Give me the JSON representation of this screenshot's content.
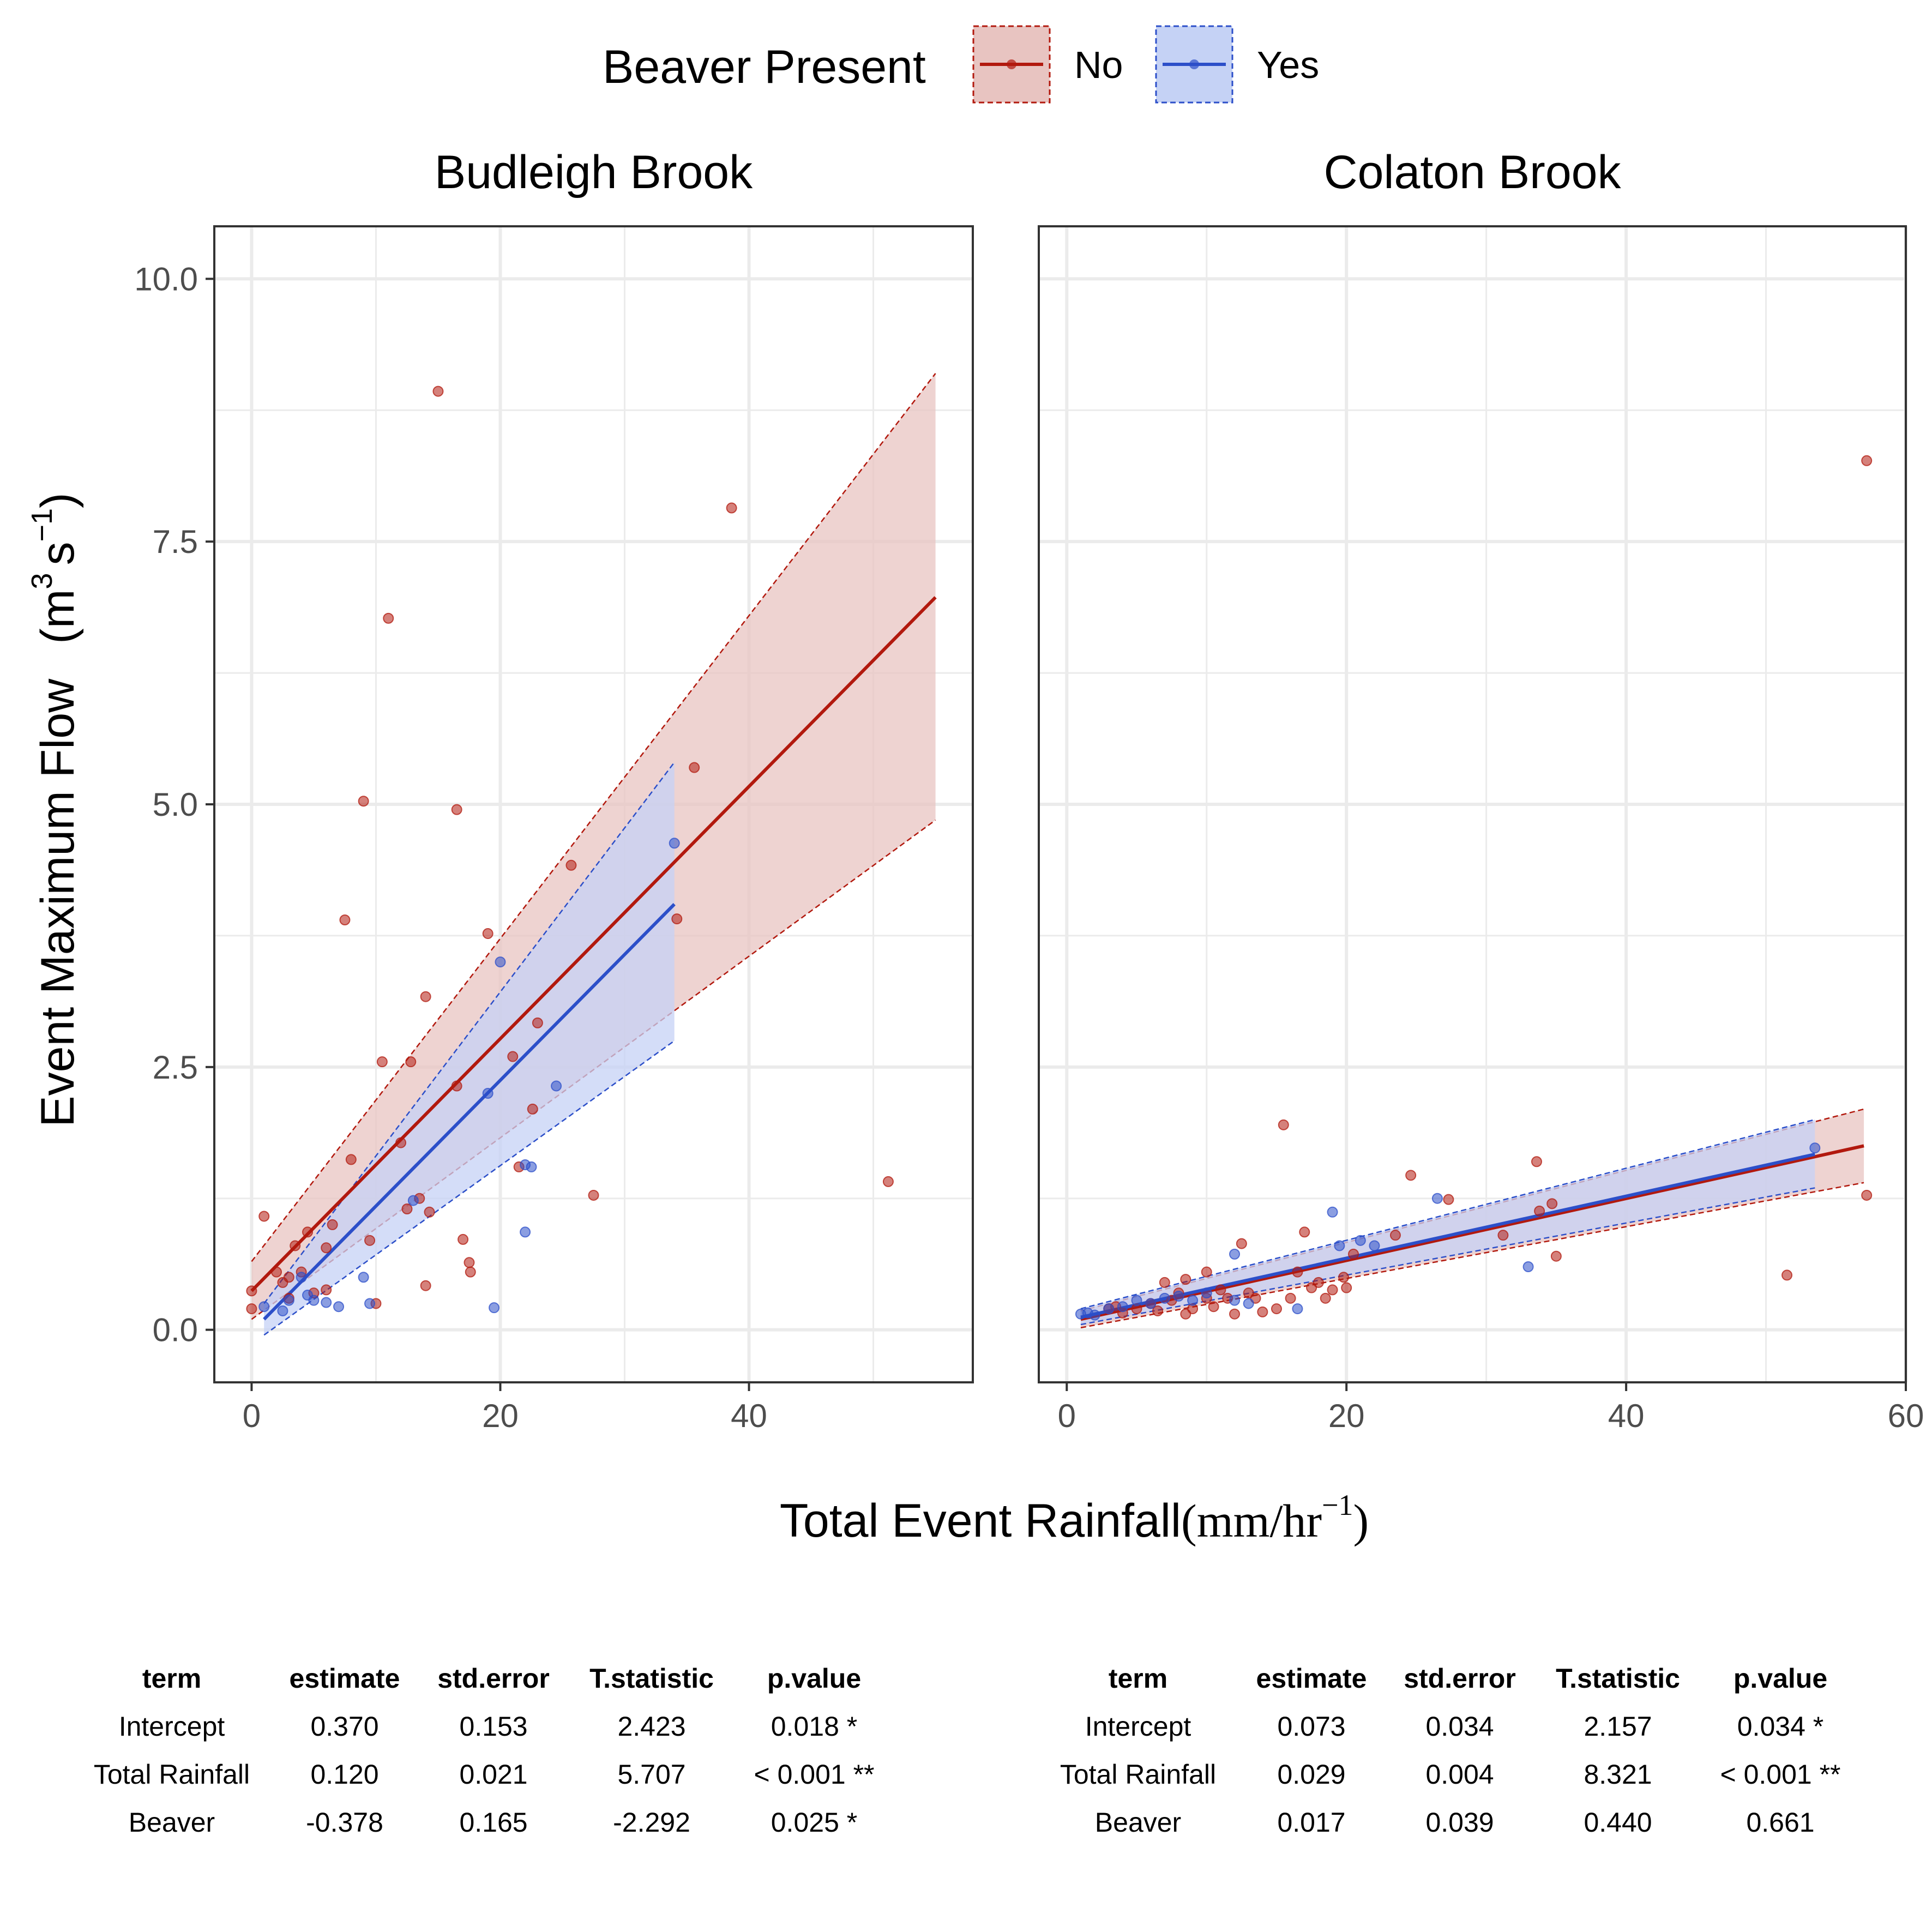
{
  "legend": {
    "title": "Beaver Present",
    "items": [
      {
        "label": "No",
        "color": "#B2190E",
        "fill": "#E8C4C1"
      },
      {
        "label": "Yes",
        "color": "#2C4FC9",
        "fill": "#C5D2F5"
      }
    ]
  },
  "axes": {
    "ylabel": "Event Maximum Flow",
    "ylabel_unit_base": "m",
    "ylabel_unit_exp1": "3",
    "ylabel_unit_mid": "s",
    "ylabel_unit_exp2": "−1",
    "xlabel": "Total Event Rainfall",
    "xlabel_unit_base": "mm/hr",
    "xlabel_unit_exp": "−1"
  },
  "chart_data": [
    {
      "type": "scatter",
      "title": "Budleigh Brook",
      "xlim": [
        -3,
        58
      ],
      "ylim": [
        -0.5,
        10.5
      ],
      "xticks": [
        0,
        20,
        40
      ],
      "yticks": [
        "0.0",
        "2.5",
        "5.0",
        "7.5",
        "10.0"
      ],
      "grid": true,
      "series": [
        {
          "name": "No",
          "color": "#B2190E",
          "points": [
            [
              0,
              0.2
            ],
            [
              0,
              0.37
            ],
            [
              1,
              1.08
            ],
            [
              2,
              0.55
            ],
            [
              2.5,
              0.45
            ],
            [
              3,
              0.3
            ],
            [
              3,
              0.5
            ],
            [
              3.5,
              0.8
            ],
            [
              4,
              0.55
            ],
            [
              4.5,
              0.93
            ],
            [
              5,
              0.35
            ],
            [
              6,
              0.78
            ],
            [
              6,
              0.38
            ],
            [
              6.5,
              1.0
            ],
            [
              7.5,
              3.9
            ],
            [
              8,
              1.62
            ],
            [
              9,
              5.03
            ],
            [
              9.5,
              0.85
            ],
            [
              10,
              0.25
            ],
            [
              10.5,
              2.55
            ],
            [
              11,
              6.77
            ],
            [
              12,
              1.78
            ],
            [
              12.5,
              1.15
            ],
            [
              12.8,
              2.55
            ],
            [
              13.5,
              1.25
            ],
            [
              14,
              0.42
            ],
            [
              14,
              3.17
            ],
            [
              14.3,
              1.12
            ],
            [
              15,
              8.93
            ],
            [
              16.5,
              4.95
            ],
            [
              16.5,
              2.32
            ],
            [
              17,
              0.86
            ],
            [
              17.5,
              0.64
            ],
            [
              17.6,
              0.55
            ],
            [
              19,
              3.77
            ],
            [
              21,
              2.6
            ],
            [
              21.5,
              1.55
            ],
            [
              22.6,
              2.1
            ],
            [
              23,
              2.92
            ],
            [
              25.7,
              4.42
            ],
            [
              27.5,
              1.28
            ],
            [
              34.2,
              3.91
            ],
            [
              35.6,
              5.35
            ],
            [
              38.6,
              7.82
            ],
            [
              51.2,
              1.41
            ]
          ],
          "fit": {
            "x": [
              0,
              55
            ],
            "y": [
              0.37,
              6.97
            ],
            "lower": [
              0.1,
              4.85
            ],
            "upper": [
              0.65,
              9.1
            ]
          }
        },
        {
          "name": "Yes",
          "color": "#2C4FC9",
          "points": [
            [
              1,
              0.22
            ],
            [
              2.5,
              0.18
            ],
            [
              3,
              0.28
            ],
            [
              4,
              0.5
            ],
            [
              4.5,
              0.33
            ],
            [
              5,
              0.28
            ],
            [
              6,
              0.26
            ],
            [
              7,
              0.22
            ],
            [
              9,
              0.5
            ],
            [
              9.5,
              0.25
            ],
            [
              13,
              1.23
            ],
            [
              19,
              2.25
            ],
            [
              19.5,
              0.21
            ],
            [
              20,
              3.5
            ],
            [
              22,
              1.57
            ],
            [
              22,
              0.93
            ],
            [
              22.5,
              1.55
            ],
            [
              24.5,
              2.32
            ],
            [
              34,
              4.63
            ]
          ],
          "fit": {
            "x": [
              1,
              34
            ],
            "y": [
              0.1,
              4.05
            ],
            "lower": [
              -0.05,
              2.75
            ],
            "upper": [
              0.25,
              5.4
            ]
          }
        }
      ],
      "table": {
        "headers": [
          "term",
          "estimate",
          "std.error",
          "T.statistic",
          "p.value"
        ],
        "rows": [
          [
            "Intercept",
            "0.370",
            "0.153",
            "2.423",
            "0.018 *"
          ],
          [
            "Total Rainfall",
            "0.120",
            "0.021",
            "5.707",
            "< 0.001 **"
          ],
          [
            "Beaver",
            "-0.378",
            "0.165",
            "-2.292",
            "0.025 *"
          ]
        ]
      }
    },
    {
      "type": "scatter",
      "title": "Colaton Brook",
      "xlim": [
        -2,
        60
      ],
      "ylim": [
        -0.5,
        10.5
      ],
      "xticks": [
        0,
        20,
        40,
        60
      ],
      "yticks": [
        "0.0",
        "2.5",
        "5.0",
        "7.5",
        "10.0"
      ],
      "grid": true,
      "series": [
        {
          "name": "No",
          "color": "#B2190E",
          "points": [
            [
              3,
              0.2
            ],
            [
              3.5,
              0.22
            ],
            [
              4,
              0.16
            ],
            [
              5,
              0.2
            ],
            [
              6,
              0.25
            ],
            [
              6.5,
              0.18
            ],
            [
              7,
              0.45
            ],
            [
              7.5,
              0.28
            ],
            [
              8,
              0.35
            ],
            [
              8.5,
              0.15
            ],
            [
              8.5,
              0.48
            ],
            [
              9,
              0.2
            ],
            [
              10,
              0.55
            ],
            [
              10,
              0.3
            ],
            [
              10.5,
              0.22
            ],
            [
              11,
              0.38
            ],
            [
              11.5,
              0.3
            ],
            [
              12,
              0.15
            ],
            [
              12.5,
              0.82
            ],
            [
              13,
              0.35
            ],
            [
              13.5,
              0.3
            ],
            [
              14,
              0.17
            ],
            [
              15,
              0.2
            ],
            [
              15.5,
              1.95
            ],
            [
              16,
              0.3
            ],
            [
              16.5,
              0.55
            ],
            [
              17,
              0.93
            ],
            [
              17.5,
              0.4
            ],
            [
              18,
              0.45
            ],
            [
              18.5,
              0.3
            ],
            [
              19,
              0.38
            ],
            [
              19.8,
              0.5
            ],
            [
              20,
              0.4
            ],
            [
              20.5,
              0.72
            ],
            [
              23.5,
              0.9
            ],
            [
              24.6,
              1.47
            ],
            [
              27.3,
              1.24
            ],
            [
              31.2,
              0.9
            ],
            [
              33.6,
              1.6
            ],
            [
              33.8,
              1.13
            ],
            [
              34.7,
              1.2
            ],
            [
              35,
              0.7
            ],
            [
              51.5,
              0.52
            ],
            [
              57.2,
              8.27
            ],
            [
              57.2,
              1.28
            ]
          ],
          "fit": {
            "x": [
              1,
              57
            ],
            "y": [
              0.1,
              1.75
            ],
            "lower": [
              0.02,
              1.4
            ],
            "upper": [
              0.18,
              2.1
            ]
          }
        },
        {
          "name": "Yes",
          "color": "#2C4FC9",
          "points": [
            [
              1,
              0.15
            ],
            [
              1.5,
              0.16
            ],
            [
              2,
              0.14
            ],
            [
              3,
              0.2
            ],
            [
              4,
              0.22
            ],
            [
              5,
              0.28
            ],
            [
              6,
              0.25
            ],
            [
              7,
              0.3
            ],
            [
              8,
              0.32
            ],
            [
              9,
              0.28
            ],
            [
              10,
              0.35
            ],
            [
              12,
              0.72
            ],
            [
              12,
              0.28
            ],
            [
              13,
              0.25
            ],
            [
              16.5,
              0.2
            ],
            [
              19,
              1.12
            ],
            [
              19.5,
              0.8
            ],
            [
              21,
              0.85
            ],
            [
              22,
              0.8
            ],
            [
              26.5,
              1.25
            ],
            [
              33,
              0.6
            ],
            [
              53.5,
              1.73
            ]
          ],
          "fit": {
            "x": [
              1,
              53.5
            ],
            "y": [
              0.12,
              1.67
            ],
            "lower": [
              0.05,
              1.35
            ],
            "upper": [
              0.2,
              2.0
            ]
          }
        }
      ],
      "table": {
        "headers": [
          "term",
          "estimate",
          "std.error",
          "T.statistic",
          "p.value"
        ],
        "rows": [
          [
            "Intercept",
            "0.073",
            "0.034",
            "2.157",
            "0.034 *"
          ],
          [
            "Total Rainfall",
            "0.029",
            "0.004",
            "8.321",
            "< 0.001 **"
          ],
          [
            "Beaver",
            "0.017",
            "0.039",
            "0.440",
            "0.661"
          ]
        ]
      }
    }
  ]
}
